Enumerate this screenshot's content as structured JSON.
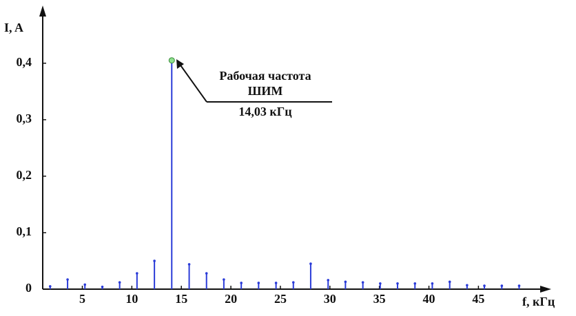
{
  "chart_data": {
    "type": "stem",
    "ylabel": "I, A",
    "xlabel": "f, кГц",
    "annotation": [
      "Рабочая частота",
      "ШИМ",
      "14,03 кГц"
    ],
    "x": [
      1.75,
      3.51,
      5.26,
      7.02,
      8.77,
      10.52,
      12.28,
      14.03,
      15.79,
      17.54,
      19.29,
      21.05,
      22.8,
      24.56,
      26.31,
      28.06,
      29.82,
      31.57,
      33.33,
      35.08,
      36.83,
      38.59,
      40.34,
      42.1,
      43.85,
      45.6,
      47.36,
      49.11
    ],
    "values": [
      0.005,
      0.017,
      0.008,
      0.004,
      0.012,
      0.028,
      0.05,
      0.405,
      0.044,
      0.028,
      0.017,
      0.011,
      0.011,
      0.011,
      0.012,
      0.045,
      0.016,
      0.013,
      0.012,
      0.01,
      0.01,
      0.01,
      0.01,
      0.013,
      0.007,
      0.006,
      0.006,
      0.006
    ],
    "color": "#2a3bd8",
    "highlight_color": "#8ee08e",
    "xlim": [
      1,
      52
    ],
    "ylim": [
      0,
      0.49
    ],
    "xticks": [
      5,
      10,
      15,
      20,
      25,
      30,
      35,
      40,
      45
    ],
    "yticks": [
      0,
      {
        "value": 0.1,
        "label": "0,1"
      },
      {
        "value": 0.2,
        "label": "0,2"
      },
      {
        "value": 0.3,
        "label": "0,3"
      },
      {
        "value": 0.4,
        "label": "0,4"
      }
    ]
  }
}
